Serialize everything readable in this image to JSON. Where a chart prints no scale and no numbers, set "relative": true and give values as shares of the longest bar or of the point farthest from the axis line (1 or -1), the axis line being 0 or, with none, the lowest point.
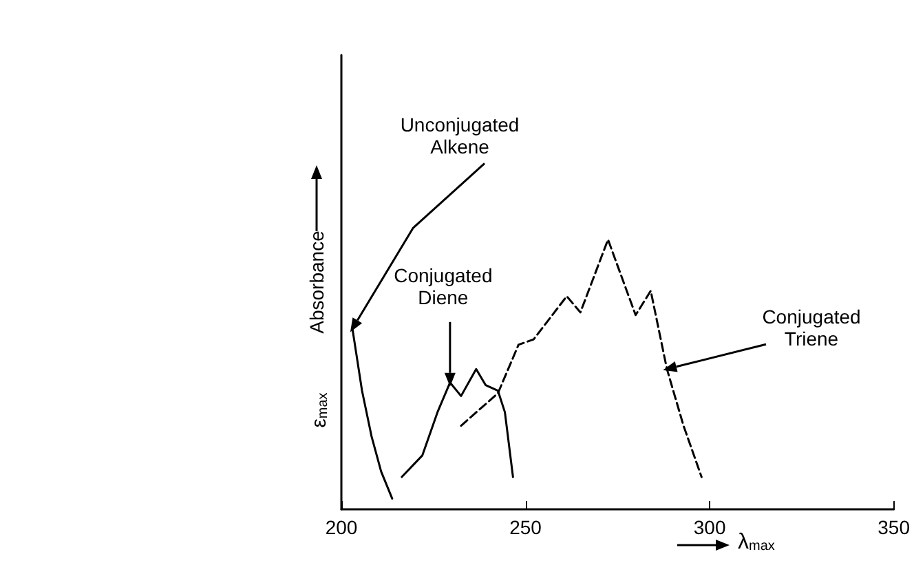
{
  "chart_data": {
    "type": "line",
    "relative": true,
    "xlabel": "λ$_{max}$",
    "ylabel": "Absorbance",
    "xlim": [
      200,
      350
    ],
    "xticks": [
      200,
      250,
      300,
      350
    ],
    "marker": "none",
    "series": [
      {
        "color": "#000000",
        "line_style": "solid",
        "x": [
          203.0,
          205.6,
          208.2,
          210.8,
          213.8
        ],
        "values": [
          0.67,
          0.44,
          0.27,
          0.14,
          0.04
        ]
      },
      {
        "color": "#000000",
        "line_style": "solid",
        "x": [
          216.4,
          222.0,
          226.1,
          229.5,
          232.5,
          236.6,
          239.2,
          242.5,
          244.4,
          246.6
        ],
        "values": [
          0.12,
          0.2,
          0.36,
          0.47,
          0.42,
          0.52,
          0.46,
          0.44,
          0.36,
          0.12
        ]
      },
      {
        "color": "#000000",
        "line_style": "dashed",
        "x": [
          232.5,
          242.5,
          248.1,
          252.2,
          261.2,
          264.9,
          272.4,
          279.9,
          284.0,
          288.4,
          292.9,
          297.8
        ],
        "values": [
          0.31,
          0.43,
          0.61,
          0.63,
          0.79,
          0.73,
          1,
          0.72,
          0.81,
          0.52,
          0.31,
          0.12
        ]
      }
    ],
    "annotations": [
      {
        "text": "Unconjugated\nAlkene",
        "x": 203.0,
        "y": 0.67
      },
      {
        "text": "Conjugated\nDiene",
        "x": 229.5,
        "y": 0.47
      },
      {
        "text": "Conjugated\nTriene",
        "x": 288.4,
        "y": 0.52
      },
      "ε$_{max}$"
    ]
  }
}
